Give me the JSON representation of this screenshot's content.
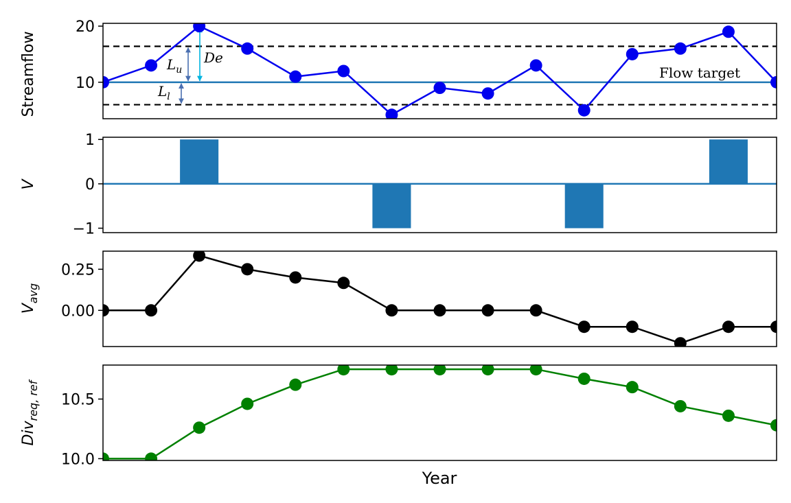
{
  "chart_data": [
    {
      "type": "line",
      "ylabel": "Streamflow",
      "yticks": [
        10,
        20
      ],
      "ylim": [
        3.5,
        20.5
      ],
      "x": [
        1,
        2,
        3,
        4,
        5,
        6,
        7,
        8,
        9,
        10,
        11,
        12,
        13,
        14,
        15
      ],
      "series": [
        {
          "values": [
            10,
            13,
            20,
            16,
            11,
            12,
            4.2,
            9,
            8,
            13,
            5,
            15,
            16,
            19,
            10
          ],
          "color": "#0000ee"
        }
      ],
      "reference_lines": {
        "flow_target": 10,
        "upper_limit": 16.4,
        "lower_limit": 6
      },
      "annotations": {
        "flow_target": "Flow target",
        "upper": "L",
        "upper_sub": "u",
        "lower": "L",
        "lower_sub": "l",
        "deviation": "De"
      }
    },
    {
      "type": "bar",
      "ylabel": "V",
      "yticks": [
        1,
        0,
        -1
      ],
      "yticklabels": [
        "1",
        "0",
        "−1"
      ],
      "ylim": [
        -1.1,
        1.05
      ],
      "x": [
        1,
        2,
        3,
        4,
        5,
        6,
        7,
        8,
        9,
        10,
        11,
        12,
        13,
        14,
        15
      ],
      "values": [
        0,
        0,
        1,
        0,
        0,
        0,
        -1,
        0,
        0,
        0,
        -1,
        0,
        0,
        1,
        0
      ],
      "color": "#1f77b4"
    },
    {
      "type": "line",
      "ylabel": "V",
      "ylabel_sub": "avg",
      "yticks": [
        0.25,
        0.0
      ],
      "yticklabels": [
        "0.25",
        "0.00"
      ],
      "ylim": [
        -0.22,
        0.36
      ],
      "x": [
        1,
        2,
        3,
        4,
        5,
        6,
        7,
        8,
        9,
        10,
        11,
        12,
        13,
        14,
        15
      ],
      "series": [
        {
          "values": [
            0,
            0,
            0.333,
            0.25,
            0.2,
            0.167,
            0,
            0,
            0,
            0,
            -0.1,
            -0.1,
            -0.2,
            -0.1,
            -0.1
          ],
          "color": "#000000"
        }
      ]
    },
    {
      "type": "line",
      "ylabel": "Div",
      "ylabel_sub": "req, ref",
      "xlabel": "Year",
      "yticks": [
        10.5,
        10.0
      ],
      "yticklabels": [
        "10.5",
        "10.0"
      ],
      "ylim": [
        9.985,
        10.785
      ],
      "x": [
        1,
        2,
        3,
        4,
        5,
        6,
        7,
        8,
        9,
        10,
        11,
        12,
        13,
        14,
        15
      ],
      "series": [
        {
          "values": [
            10.0,
            10.0,
            10.26,
            10.46,
            10.62,
            10.75,
            10.75,
            10.75,
            10.75,
            10.75,
            10.67,
            10.6,
            10.44,
            10.36,
            10.28
          ],
          "color": "#008000"
        }
      ]
    }
  ],
  "colors": {
    "flow_target": "#1f77b4",
    "upper_arrow": "#4a6fb0",
    "lower_arrow": "#4a6fb0",
    "deviation_arrow": "#00b4e0",
    "axes": "#000000"
  }
}
